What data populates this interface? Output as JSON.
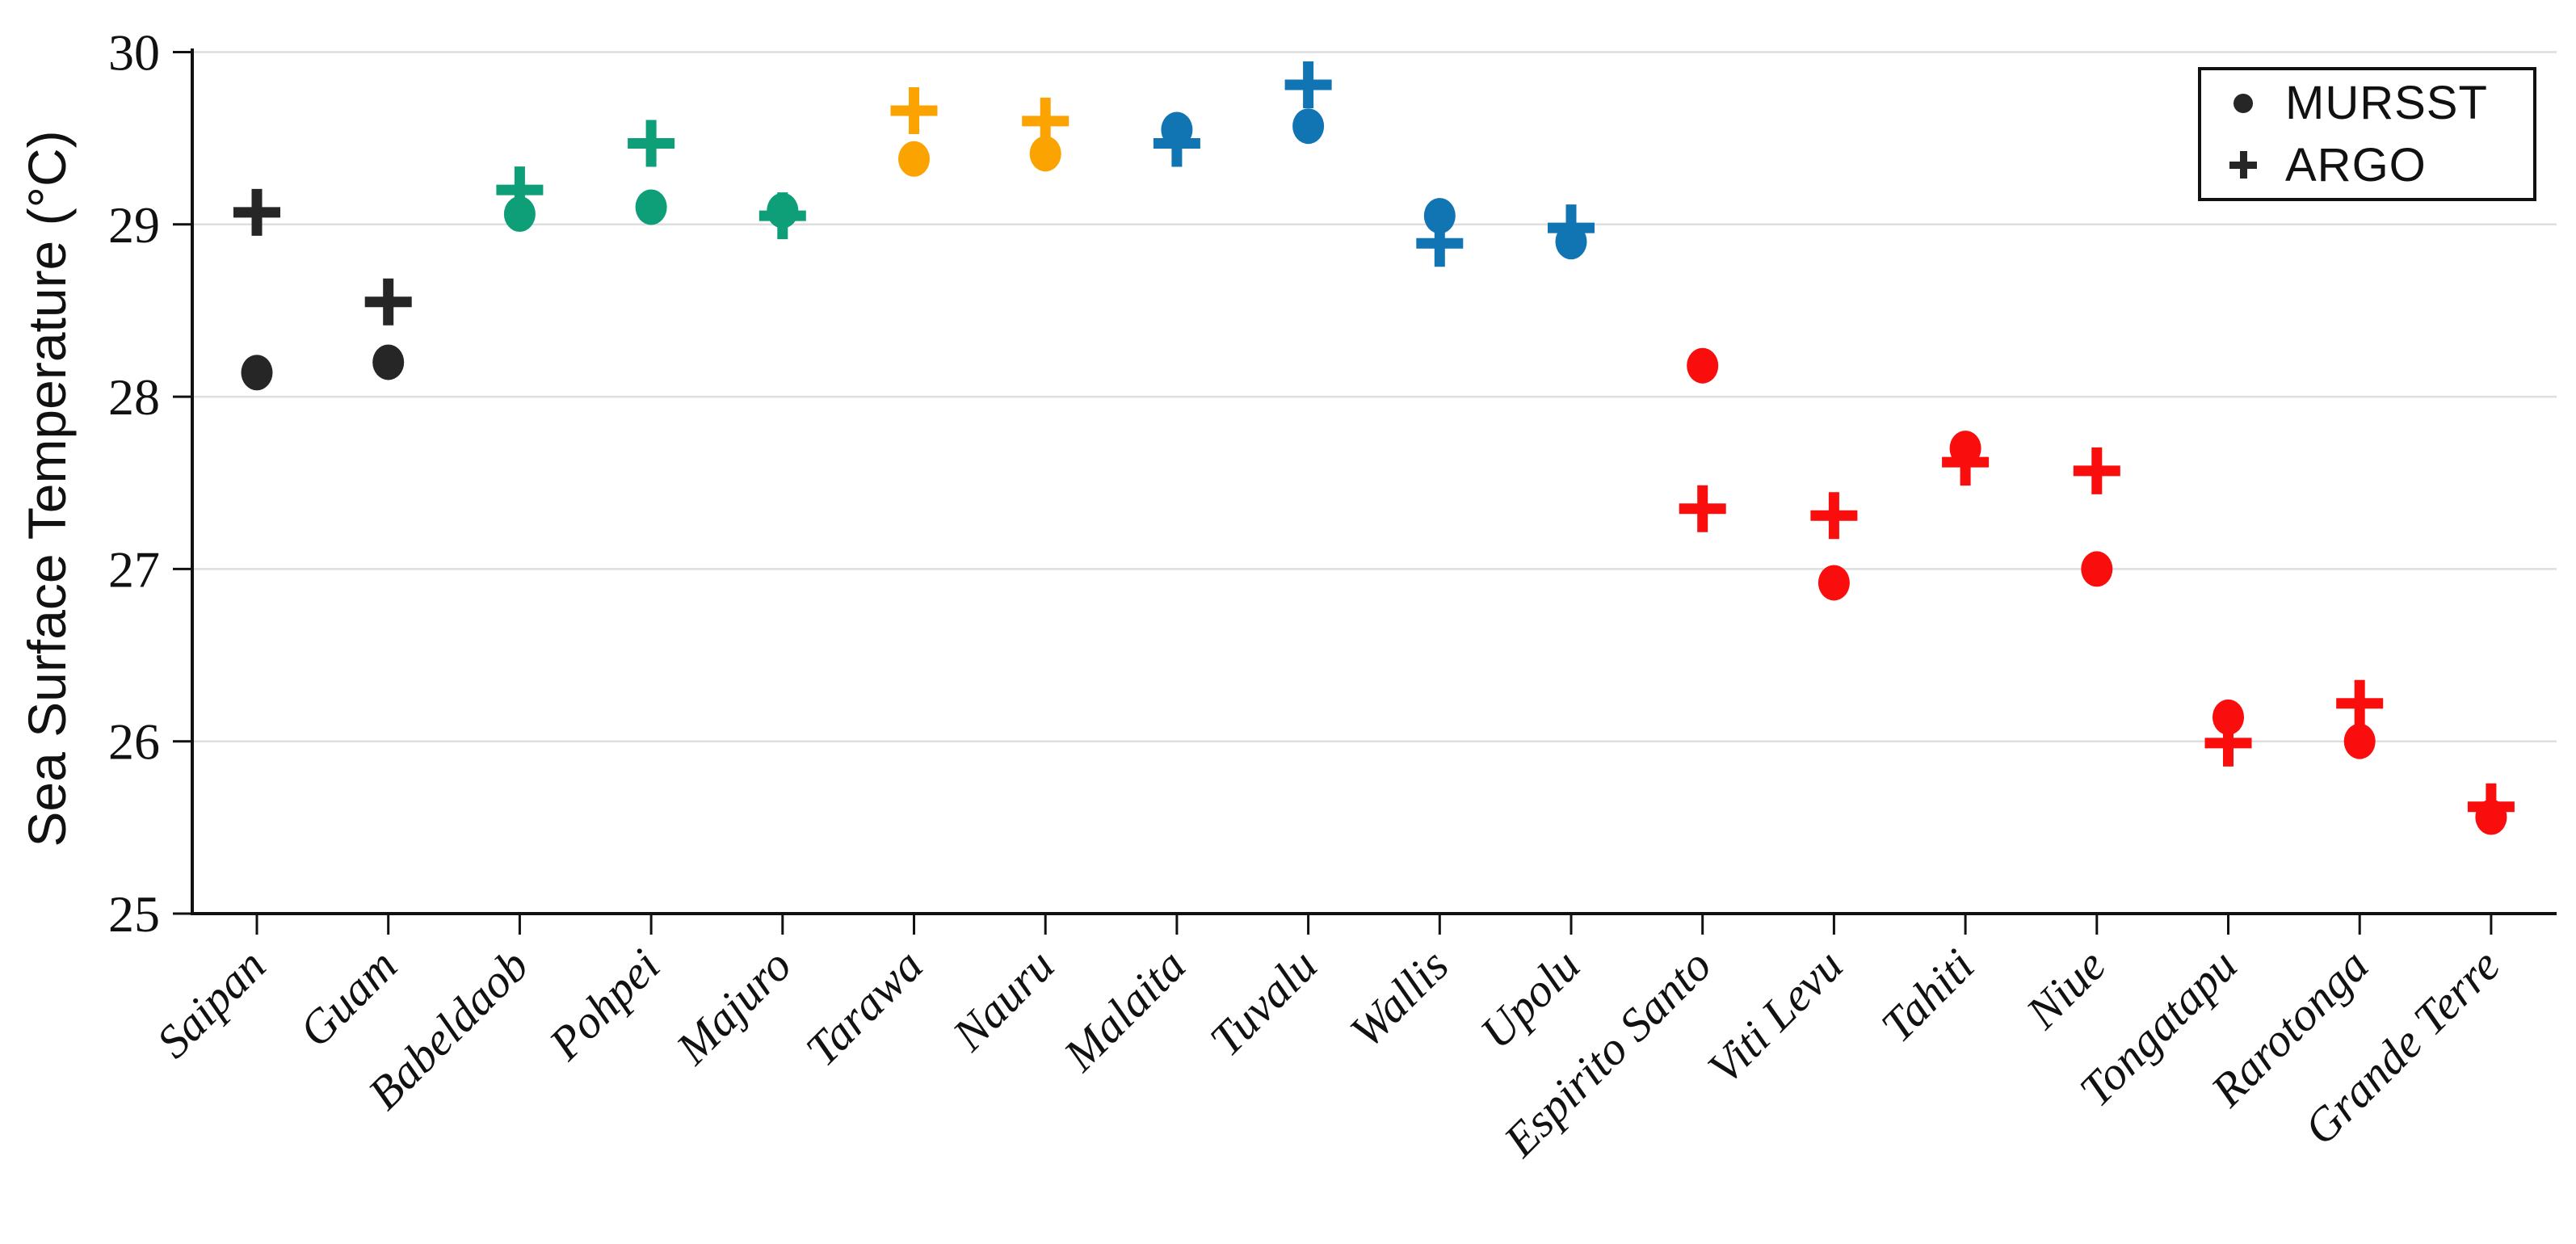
{
  "chart_data": {
    "type": "scatter",
    "title": "",
    "xlabel": "",
    "ylabel": "Sea Surface Temperature (°C)",
    "ylim": [
      25,
      30
    ],
    "yticks": [
      25,
      26,
      27,
      28,
      29,
      30
    ],
    "grid": "horizontal",
    "legend_position": "top-right",
    "legend": {
      "entries": [
        {
          "label": "MURSST",
          "marker": "dot"
        },
        {
          "label": "ARGO",
          "marker": "plus"
        }
      ]
    },
    "categories": [
      "Saipan",
      "Guam",
      "Babeldaob",
      "Pohpei",
      "Majuro",
      "Tarawa",
      "Nauru",
      "Malaita",
      "Tuvalu",
      "Wallis",
      "Upolu",
      "Espirito Santo",
      "Viti Levu",
      "Tahiti",
      "Niue",
      "Tongatapu",
      "Rarotonga",
      "Grande Terre"
    ],
    "point_colors": [
      "#262626",
      "#262626",
      "#0E9E78",
      "#0E9E78",
      "#0E9E78",
      "#FBA300",
      "#FBA300",
      "#1175B3",
      "#1175B3",
      "#1175B3",
      "#1175B3",
      "#FA0D0D",
      "#FA0D0D",
      "#FA0D0D",
      "#FA0D0D",
      "#FA0D0D",
      "#FA0D0D",
      "#FA0D0D"
    ],
    "series": [
      {
        "name": "MURSST",
        "marker": "dot",
        "values": [
          28.14,
          28.2,
          29.06,
          29.1,
          29.08,
          29.38,
          29.41,
          29.55,
          29.57,
          29.05,
          28.9,
          28.18,
          26.92,
          27.7,
          27.0,
          26.14,
          26.0,
          25.56
        ]
      },
      {
        "name": "ARGO",
        "marker": "plus",
        "values": [
          29.07,
          28.55,
          29.2,
          29.47,
          29.05,
          29.66,
          29.6,
          29.47,
          29.81,
          28.89,
          28.98,
          27.35,
          27.31,
          27.62,
          27.57,
          25.99,
          26.22,
          25.62
        ]
      }
    ],
    "colors": {
      "mariana_group": "#262626",
      "caroline_group": "#0E9E78",
      "gilbert_group": "#FBA300",
      "central_group": "#1175B3",
      "southern_group": "#FA0D0D",
      "gridline": "#dedede",
      "axis": "#111111"
    }
  }
}
